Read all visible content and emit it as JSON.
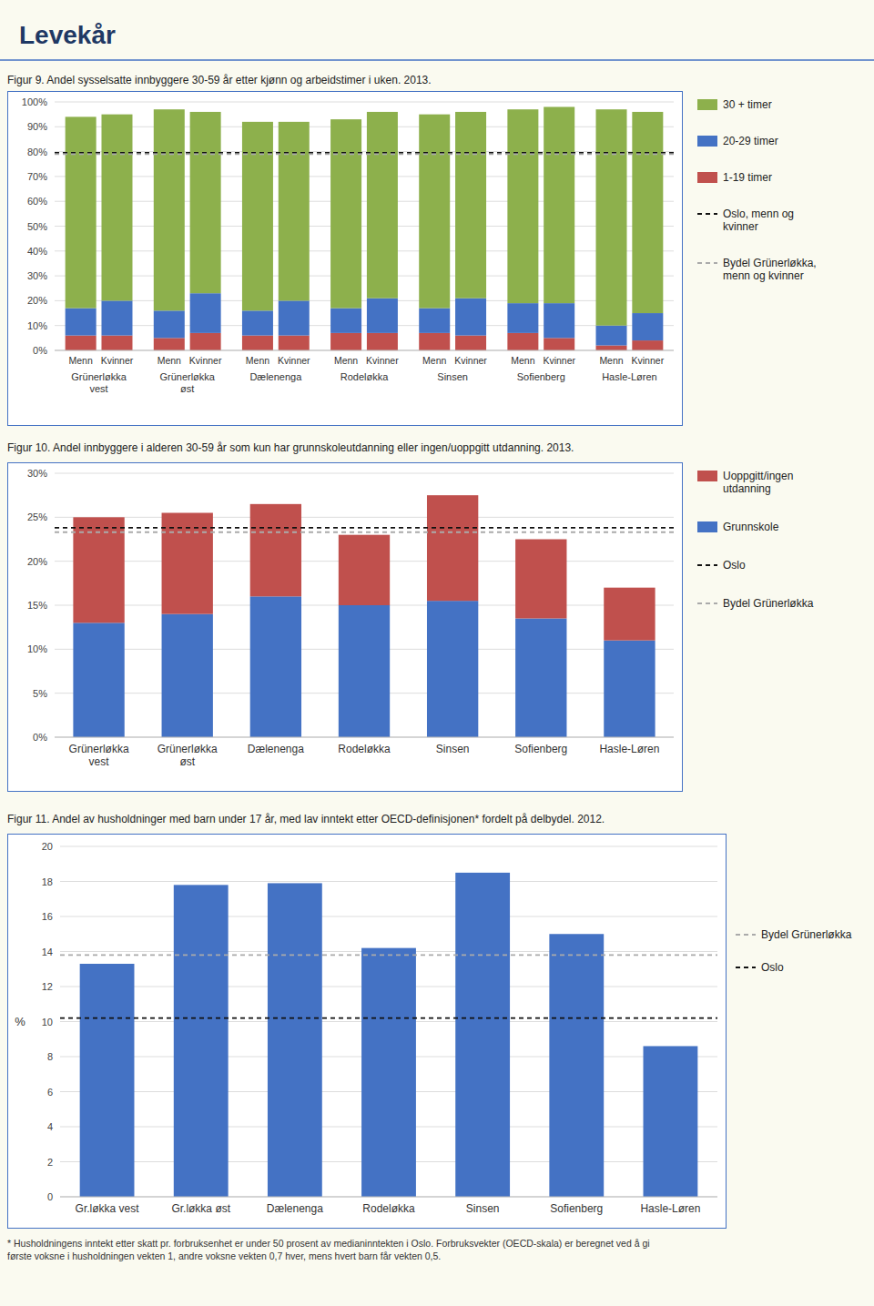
{
  "title": "Levekår",
  "chart_data": [
    {
      "type": "bar",
      "stacked": true,
      "grid": true,
      "legend": "right",
      "title": "Figur 9. Andel sysselsatte innbyggere  30-59 år etter kjønn og arbeidstimer i uken. 2013.",
      "groups": [
        "Grünerløkka\nvest",
        "Grünerløkka\nøst",
        "Dælenenga",
        "Rodeløkka",
        "Sinsen",
        "Sofienberg",
        "Hasle-Løren"
      ],
      "categories": [
        "Menn",
        "Kvinner",
        "Menn",
        "Kvinner",
        "Menn",
        "Kvinner",
        "Menn",
        "Kvinner",
        "Menn",
        "Kvinner",
        "Menn",
        "Kvinner",
        "Menn",
        "Kvinner"
      ],
      "series": [
        {
          "name": "30 + timer",
          "color": "#8DB04C",
          "values": [
            77,
            75,
            81,
            73,
            76,
            72,
            76,
            75,
            78,
            75,
            78,
            79,
            87,
            81
          ]
        },
        {
          "name": "20-29 timer",
          "color": "#4472C4",
          "values": [
            11,
            14,
            11,
            16,
            10,
            14,
            10,
            14,
            10,
            15,
            12,
            14,
            8,
            11
          ]
        },
        {
          "name": "1-19 timer",
          "color": "#C0504D",
          "values": [
            6,
            6,
            5,
            7,
            6,
            6,
            7,
            7,
            7,
            6,
            7,
            5,
            2,
            4
          ]
        }
      ],
      "reference_lines": [
        {
          "name": "Oslo, menn og\nkvinner",
          "value": 79.5,
          "color": "#111111",
          "line_style": "dashed"
        },
        {
          "name": "Bydel Grünerløkka,\nmenn og kvinner",
          "value": 79.0,
          "color": "#AAAAAA",
          "line_style": "dashed"
        }
      ],
      "ylim": [
        0,
        100
      ],
      "yticks": [
        {
          "value": 0,
          "label": "0%"
        },
        {
          "value": 10,
          "label": "10%"
        },
        {
          "value": 20,
          "label": "20%"
        },
        {
          "value": 30,
          "label": "30%"
        },
        {
          "value": 40,
          "label": "40%"
        },
        {
          "value": 50,
          "label": "50%"
        },
        {
          "value": 60,
          "label": "60%"
        },
        {
          "value": 70,
          "label": "70%"
        },
        {
          "value": 80,
          "label": "80%"
        },
        {
          "value": 90,
          "label": "90%"
        },
        {
          "value": 100,
          "label": "100%"
        }
      ]
    },
    {
      "type": "bar",
      "stacked": true,
      "grid": true,
      "legend": "right",
      "title": "Figur 10. Andel innbyggere i alderen 30-59 år som kun har grunnskoleutdanning eller ingen/uoppgitt utdanning. 2013.",
      "categories": [
        "Grünerløkka\nvest",
        "Grünerløkka\nøst",
        "Dælenenga",
        "Rodeløkka",
        "Sinsen",
        "Sofienberg",
        "Hasle-Løren"
      ],
      "series": [
        {
          "name": "Uoppgitt/ingen\nutdanning",
          "color": "#C0504D",
          "values": [
            12.0,
            11.5,
            10.5,
            8.0,
            12.0,
            9.0,
            6.0
          ]
        },
        {
          "name": "Grunnskole",
          "color": "#4472C4",
          "values": [
            13.0,
            14.0,
            16.0,
            15.0,
            15.5,
            13.5,
            11.0
          ]
        }
      ],
      "reference_lines": [
        {
          "name": "Oslo",
          "value": 23.8,
          "color": "#111111",
          "line_style": "dashed"
        },
        {
          "name": "Bydel Grünerløkka",
          "value": 23.3,
          "color": "#AAAAAA",
          "line_style": "dashed"
        }
      ],
      "ylim": [
        0,
        30
      ],
      "yticks": [
        {
          "value": 0,
          "label": "0%"
        },
        {
          "value": 5,
          "label": "5%"
        },
        {
          "value": 10,
          "label": "10%"
        },
        {
          "value": 15,
          "label": "15%"
        },
        {
          "value": 20,
          "label": "20%"
        },
        {
          "value": 25,
          "label": "25%"
        },
        {
          "value": 30,
          "label": "30%"
        }
      ]
    },
    {
      "type": "bar",
      "grid": true,
      "legend": "right",
      "title": "Figur 11. Andel av husholdninger med barn under 17 år, med lav inntekt etter OECD-definisjonen* fordelt på delbydel. 2012.",
      "categories": [
        "Gr.løkka vest",
        "Gr.løkka øst",
        "Dælenenga",
        "Rodeløkka",
        "Sinsen",
        "Sofienberg",
        "Hasle-Løren"
      ],
      "values": [
        13.3,
        17.8,
        17.9,
        14.2,
        18.5,
        15.0,
        8.6
      ],
      "color": "#4472C4",
      "reference_lines": [
        {
          "name": "Bydel Grünerløkka",
          "value": 13.8,
          "color": "#AAAAAA",
          "line_style": "dashed"
        },
        {
          "name": "Oslo",
          "value": 10.2,
          "color": "#111111",
          "line_style": "dashed"
        }
      ],
      "ylim": [
        0,
        20
      ],
      "yticks": [
        0,
        2,
        4,
        6,
        8,
        10,
        12,
        14,
        16,
        18,
        20
      ],
      "y_label": "%",
      "annotations": [
        "* Husholdningens inntekt etter skatt pr. forbruksenhet er under 50 prosent av medianinntekten i Oslo. Forbruksvekter (OECD-skala) er beregnet ved å gi\nførste voksne i husholdningen vekten 1, andre voksne vekten 0,7 hver, mens hvert barn får vekten 0,5."
      ]
    }
  ]
}
